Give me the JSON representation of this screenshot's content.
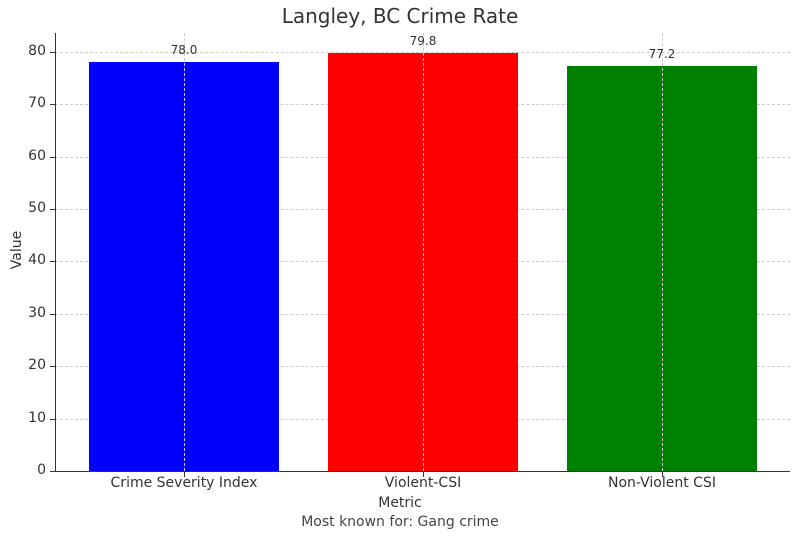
{
  "chart_data": {
    "type": "bar",
    "title": "Langley, BC Crime Rate",
    "xlabel": "Metric",
    "ylabel": "Value",
    "caption": "Most known for: Gang crime",
    "categories": [
      "Crime Severity Index",
      "Violent-CSI",
      "Non-Violent CSI"
    ],
    "values": [
      78.0,
      79.8,
      77.2
    ],
    "value_labels": [
      "78.0",
      "79.8",
      "77.2"
    ],
    "colors": [
      "#0000ff",
      "#ff0000",
      "#008000"
    ],
    "ylim": [
      0,
      83.6
    ],
    "yticks": [
      "0",
      "10",
      "20",
      "30",
      "40",
      "50",
      "60",
      "70",
      "80"
    ],
    "grid": true,
    "legend": null
  }
}
